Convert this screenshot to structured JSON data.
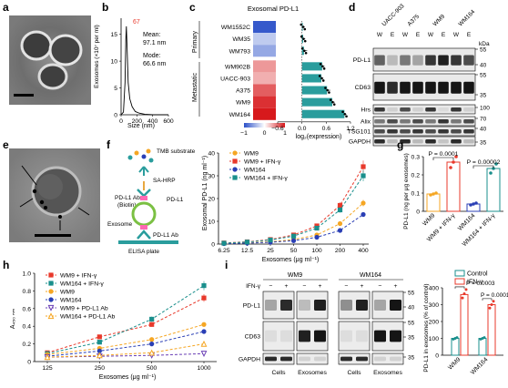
{
  "colors": {
    "red": "#e8392b",
    "blue": "#2a3fb5",
    "teal": "#1a8f8c",
    "orange": "#f5a623",
    "heat_blue": "#2b50c8",
    "heat_red": "#d7191c",
    "bar_teal": "#2a9d9d",
    "pink_marker": "#ff69b4"
  },
  "panels": {
    "a": "a",
    "b": "b",
    "c": "c",
    "d": "d",
    "e": "e",
    "f": "f",
    "g": "g",
    "h": "h",
    "i": "i"
  },
  "panel_b": {
    "peak_label": "67",
    "mean_label": "Mean:",
    "mean_value": "97.1 nm",
    "mode_label": "Mode:",
    "mode_value": "66.6 nm",
    "ylabel": "Exosomes (×10⁷ per ml)",
    "xlabel": "Size (nm)",
    "yticks": [
      "0",
      "5",
      "10",
      "15"
    ],
    "xticks": [
      "0",
      "200",
      "400",
      "600"
    ]
  },
  "panel_c": {
    "title": "Exosomal PD-L1",
    "group_primary": "Primary",
    "group_metastatic": "Metastatic",
    "xlabel": "log₂(expression)",
    "colorbar_ticks": [
      "−1",
      "0",
      "1"
    ],
    "xticks": [
      "−0.6",
      "0.0",
      "0.6",
      "1.2"
    ]
  },
  "panel_d": {
    "cell_lines": [
      "UACC-903",
      "A375",
      "WM9",
      "WM164"
    ],
    "lane_letters": [
      "W",
      "E",
      "W",
      "E",
      "W",
      "E",
      "W",
      "E"
    ],
    "proteins": [
      "PD-L1",
      "CD63",
      "Hrs",
      "Alix",
      "TSG101",
      "GAPDH"
    ],
    "kda_label": "kDa",
    "kda_marks": [
      "55",
      "40",
      "55",
      "35",
      "100",
      "70",
      "40",
      "35"
    ]
  },
  "panel_f": {
    "diagram": {
      "tmb": "TMB substrate",
      "sahrp": "SA-HRP",
      "pdl1_ab_biotin": "PD-L1 Ab\n(Biotin)",
      "pdl1": "PD-L1",
      "exosome": "Exosome",
      "pdl1_ab": "PD-L1 Ab",
      "elisa": "ELISA plate"
    },
    "ylabel": "Exosomal PD-L1 (ng ml⁻¹)",
    "xlabel": "Exosomes (μg ml⁻¹)",
    "yticks": [
      "0",
      "10",
      "20",
      "30",
      "40"
    ],
    "xticks": [
      "6.25",
      "12.5",
      "25",
      "50",
      "100",
      "200",
      "400"
    ]
  },
  "panel_g": {
    "ylabel": "PD-L1 (ng per μg exosomes)",
    "yticks": [
      "0",
      "0.1",
      "0.2",
      "0.3"
    ],
    "p1": "P = 0.0001",
    "p2": "P = 0.00002",
    "categories": [
      "WM9",
      "WM9 + IFN-γ",
      "WM164",
      "WM164 + IFN-γ"
    ]
  },
  "panel_h": {
    "ylabel": "A₄₅₀ ₙₘ",
    "xlabel": "Exosomes (μg ml⁻¹)",
    "yticks": [
      "0",
      "0.2",
      "0.4",
      "0.6",
      "0.8",
      "1.0"
    ],
    "xticks": [
      "125",
      "250",
      "500",
      "1000"
    ]
  },
  "panel_i": {
    "wm9": "WM9",
    "wm164": "WM164",
    "ifng": "IFN-γ",
    "signs": [
      "−",
      "+",
      "−",
      "+",
      "−",
      "+",
      "−",
      "+"
    ],
    "proteins": [
      "PD-L1",
      "CD63",
      "GAPDH"
    ],
    "kda_marks": [
      "55",
      "40",
      "55",
      "35",
      "35"
    ],
    "lanes": [
      "Cells",
      "Exosomes",
      "Cells",
      "Exosomes"
    ],
    "bar_ylabel": "PD-L1 in exosomes (% of control)",
    "bar_yticks": [
      "0",
      "100",
      "200",
      "300",
      "400"
    ],
    "bar_categories": [
      "WM9",
      "WM164"
    ],
    "legend_control": "Control",
    "legend_ifng": "IFN-γ",
    "p1": "P = 0.0003",
    "p2": "P = 0.0001"
  },
  "chart_data": [
    {
      "panel": "b",
      "type": "line",
      "xlabel": "Size (nm)",
      "ylabel": "Exosomes (×10⁷ per ml)",
      "xlim": [
        0,
        600
      ],
      "ylim": [
        0,
        18
      ],
      "series": [
        {
          "x": [
            0,
            30,
            50,
            60,
            67,
            75,
            90,
            110,
            140,
            180,
            230,
            300,
            400,
            600
          ],
          "values": [
            0,
            0.5,
            6,
            14,
            16.5,
            13,
            6,
            3,
            1.5,
            0.6,
            0.3,
            0.1,
            0,
            0
          ]
        }
      ]
    },
    {
      "panel": "c",
      "type": "heatmap",
      "title": "Exosomal PD-L1",
      "categories": [
        "WM1552C",
        "WM35",
        "WM793",
        "WM902B",
        "UACC-903",
        "A375",
        "WM9",
        "WM164"
      ],
      "heat": [
        -0.95,
        -0.3,
        -0.5,
        0.45,
        0.35,
        0.7,
        0.9,
        1.0
      ],
      "values": [
        0.02,
        0.03,
        0.05,
        0.5,
        0.48,
        0.62,
        0.75,
        1.05
      ],
      "errors": [
        0.05,
        0.05,
        0.08,
        0.06,
        0.05,
        0.08,
        0.06,
        0.05
      ],
      "xlabel": "log₂(expression)",
      "xlim": [
        -0.6,
        1.2
      ]
    },
    {
      "panel": "f",
      "type": "line",
      "categories": [
        "6.25",
        "12.5",
        "25",
        "50",
        "100",
        "200",
        "400"
      ],
      "xlabel": "Exosomes (μg ml⁻¹)",
      "ylabel": "Exosomal PD-L1 (ng ml⁻¹)",
      "ylim": [
        0,
        40
      ],
      "series": [
        {
          "name": "WM9",
          "values": [
            0.3,
            0.5,
            1,
            2,
            4,
            9,
            18
          ]
        },
        {
          "name": "WM9 + IFN-γ",
          "values": [
            0.5,
            1,
            2,
            4,
            8,
            17,
            34
          ]
        },
        {
          "name": "WM164",
          "values": [
            0.2,
            0.4,
            0.8,
            1.5,
            3,
            6,
            13
          ]
        },
        {
          "name": "WM164 + IFN-γ",
          "values": [
            0.4,
            0.9,
            1.8,
            3.5,
            7,
            15,
            30
          ]
        }
      ]
    },
    {
      "panel": "g",
      "type": "bar",
      "categories": [
        "WM9",
        "WM9 + IFN-γ",
        "WM164",
        "WM164 + IFN-γ"
      ],
      "values": [
        0.095,
        0.27,
        0.04,
        0.235
      ],
      "points": [
        [
          0.09,
          0.095,
          0.1
        ],
        [
          0.24,
          0.27,
          0.3
        ],
        [
          0.035,
          0.04,
          0.045
        ],
        [
          0.21,
          0.235,
          0.26
        ]
      ],
      "ylabel": "PD-L1 (ng per μg exosomes)",
      "ylim": [
        0,
        0.3
      ]
    },
    {
      "panel": "h",
      "type": "line",
      "categories": [
        "125",
        "250",
        "500",
        "1000"
      ],
      "xlabel": "Exosomes (μg ml⁻¹)",
      "ylabel": "A₄₅₀ ₙₘ",
      "ylim": [
        0,
        1.0
      ],
      "series": [
        {
          "name": "WM9 + IFN-γ",
          "values": [
            0.1,
            0.28,
            0.42,
            0.72
          ]
        },
        {
          "name": "WM164 + IFN-γ",
          "values": [
            0.09,
            0.22,
            0.48,
            0.86
          ]
        },
        {
          "name": "WM9",
          "values": [
            0.08,
            0.15,
            0.25,
            0.42
          ]
        },
        {
          "name": "WM164",
          "values": [
            0.06,
            0.12,
            0.2,
            0.34
          ]
        },
        {
          "name": "WM9 + PD-L1 Ab",
          "values": [
            0.05,
            0.06,
            0.07,
            0.09
          ]
        },
        {
          "name": "WM164 + PD-L1 Ab",
          "values": [
            0.05,
            0.07,
            0.1,
            0.2
          ]
        }
      ]
    },
    {
      "panel": "i",
      "type": "bar",
      "categories": [
        "WM9",
        "WM164"
      ],
      "series": [
        {
          "name": "Control",
          "values": [
            100,
            100
          ]
        },
        {
          "name": "IFN-γ",
          "values": [
            360,
            300
          ]
        }
      ],
      "points": [
        [
          [
            95,
            100,
            105
          ],
          [
            340,
            365,
            390
          ]
        ],
        [
          [
            95,
            100,
            105
          ],
          [
            280,
            300,
            320
          ]
        ]
      ],
      "ylabel": "PD-L1 in exosomes (% of control)",
      "ylim": [
        0,
        400
      ]
    }
  ]
}
